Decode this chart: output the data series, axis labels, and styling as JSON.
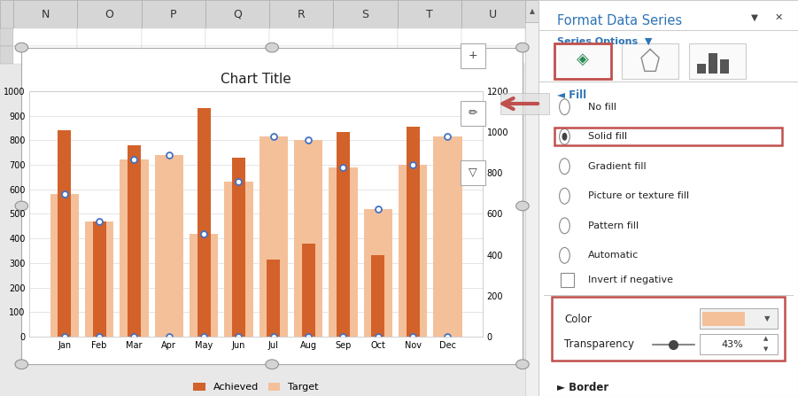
{
  "months": [
    "Jan",
    "Feb",
    "Mar",
    "Apr",
    "May",
    "Jun",
    "Jul",
    "Aug",
    "Sep",
    "Oct",
    "Nov",
    "Dec"
  ],
  "achieved": [
    840,
    470,
    780,
    0,
    930,
    730,
    315,
    380,
    835,
    330,
    855,
    0
  ],
  "target": [
    580,
    470,
    720,
    740,
    420,
    630,
    815,
    800,
    690,
    520,
    700,
    815
  ],
  "achieved_color": "#D2622A",
  "target_color": "#F4C09A",
  "title": "Chart Title",
  "left_ylim": [
    0,
    1000
  ],
  "right_ylim": [
    0,
    1200
  ],
  "left_yticks": [
    0,
    100,
    200,
    300,
    400,
    500,
    600,
    700,
    800,
    900,
    1000
  ],
  "right_yticks": [
    0,
    200,
    400,
    600,
    800,
    1000,
    1200
  ],
  "bg_outer": "#E8E8E8",
  "bg_white": "#FFFFFF",
  "grid_color": "#E0E0E0",
  "panel_title": "Format Data Series",
  "panel_title_color": "#2E74B5",
  "series_options_color": "#2E74B5",
  "fill_section_color": "#2E74B5",
  "red_rect_color": "#C0504D",
  "transparency_value": "43%",
  "col_labels": [
    "N",
    "O",
    "P",
    "Q",
    "R",
    "S",
    "T",
    "U"
  ],
  "marker_color": "#4472C4",
  "scrollbar_color": "#F0F0F0",
  "arrow_color": "#C0504D",
  "fill_options": [
    "No fill",
    "Solid fill",
    "Gradient fill",
    "Picture or texture fill",
    "Pattern fill",
    "Automatic"
  ],
  "fill_selected_index": 1
}
